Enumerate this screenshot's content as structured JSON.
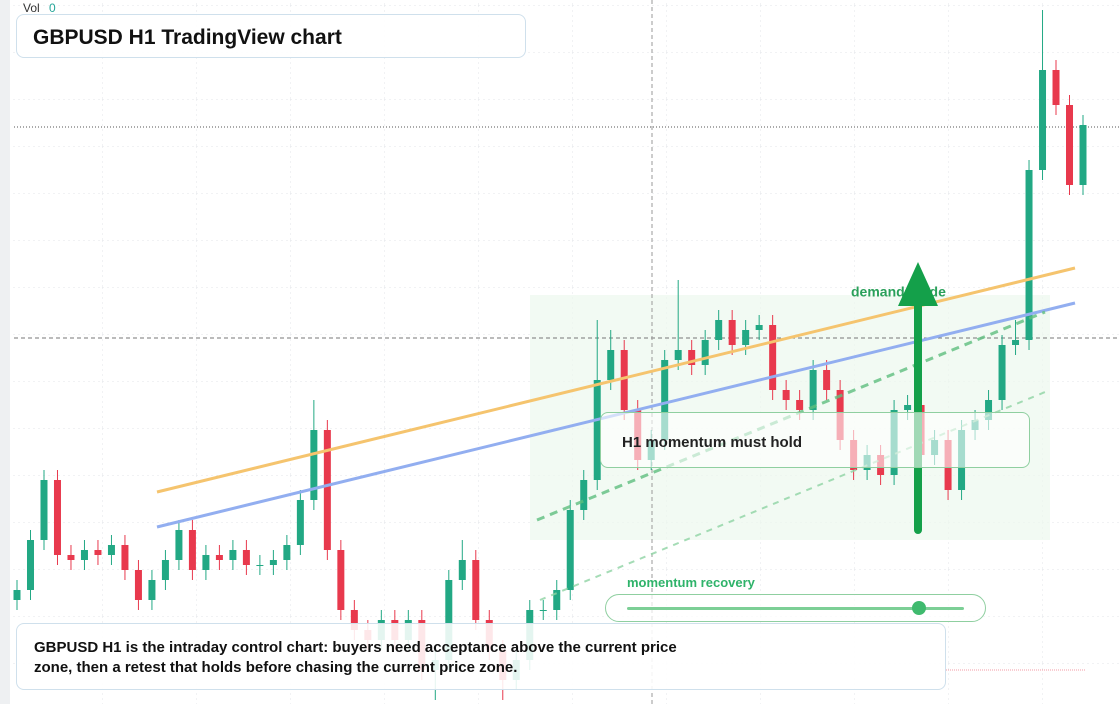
{
  "chart_data": {
    "type": "candlestick",
    "title": "GBPUSD H1 TradingView chart",
    "volume_label": "Vol",
    "volume": 0,
    "up_color": "#22a884",
    "down_color": "#e8394d",
    "ylim": [
      0,
      704
    ],
    "open": [
      104,
      114,
      164,
      224,
      149,
      144,
      154,
      149,
      159,
      134,
      104,
      124,
      144,
      174,
      134,
      149,
      144,
      154,
      139,
      139,
      144,
      159,
      204,
      274,
      154,
      94,
      74,
      64,
      84,
      64,
      84,
      34,
      44,
      124,
      144,
      84,
      54,
      24,
      44,
      94,
      94,
      114,
      194,
      224,
      324,
      354,
      294,
      244,
      264,
      344,
      354,
      339,
      364,
      384,
      359,
      374,
      379,
      314,
      304,
      294,
      334,
      314,
      264,
      234,
      249,
      229,
      294,
      299,
      249,
      264,
      214,
      274,
      284,
      304,
      359,
      364,
      534,
      634,
      599,
      519
    ],
    "high": [
      124,
      174,
      234,
      234,
      159,
      164,
      164,
      169,
      169,
      144,
      134,
      154,
      184,
      184,
      159,
      159,
      164,
      164,
      149,
      154,
      169,
      214,
      304,
      284,
      164,
      104,
      84,
      94,
      94,
      94,
      94,
      54,
      134,
      164,
      154,
      94,
      64,
      54,
      104,
      104,
      124,
      204,
      234,
      384,
      374,
      364,
      304,
      274,
      354,
      424,
      364,
      374,
      394,
      394,
      384,
      389,
      389,
      324,
      314,
      344,
      344,
      324,
      274,
      259,
      259,
      304,
      309,
      309,
      274,
      274,
      284,
      294,
      314,
      369,
      384,
      544,
      694,
      644,
      609,
      589
    ],
    "low": [
      94,
      104,
      154,
      139,
      134,
      134,
      139,
      139,
      124,
      94,
      94,
      114,
      134,
      124,
      124,
      134,
      134,
      129,
      129,
      129,
      134,
      149,
      194,
      144,
      84,
      64,
      54,
      54,
      54,
      54,
      24,
      4,
      34,
      114,
      74,
      44,
      4,
      14,
      34,
      84,
      84,
      104,
      184,
      214,
      314,
      284,
      234,
      234,
      254,
      334,
      329,
      329,
      354,
      349,
      349,
      364,
      304,
      294,
      284,
      284,
      304,
      254,
      224,
      224,
      219,
      219,
      284,
      239,
      239,
      204,
      204,
      264,
      274,
      294,
      349,
      354,
      524,
      589,
      509,
      509
    ],
    "close": [
      114,
      164,
      224,
      149,
      144,
      154,
      149,
      159,
      134,
      104,
      124,
      144,
      174,
      134,
      149,
      144,
      154,
      139,
      139,
      144,
      159,
      204,
      274,
      154,
      94,
      74,
      64,
      84,
      64,
      84,
      34,
      44,
      124,
      144,
      84,
      54,
      24,
      44,
      94,
      94,
      114,
      194,
      224,
      324,
      354,
      294,
      244,
      264,
      344,
      354,
      339,
      364,
      384,
      359,
      374,
      379,
      314,
      304,
      294,
      334,
      314,
      264,
      234,
      249,
      229,
      294,
      299,
      249,
      264,
      214,
      274,
      284,
      304,
      359,
      364,
      534,
      634,
      599,
      519,
      579
    ],
    "annotations": {
      "zone": "demand guide",
      "level": "H1 momentum must hold",
      "slider": "momentum recovery"
    },
    "caption": "GBPUSD H1 is the intraday control chart: buyers need acceptance above the current price zone, then a retest that holds before chasing the current price zone."
  }
}
